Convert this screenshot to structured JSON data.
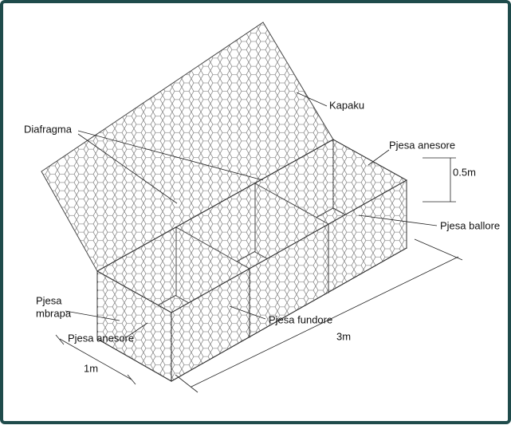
{
  "labels": {
    "lid": "Kapaku",
    "diaphragm": "Diafragma",
    "side_top": "Pjesa anesore",
    "height": "0.5m",
    "front": "Pjesa ballore",
    "back": [
      "Pjesa",
      "mbrapa"
    ],
    "side_bottom": "Pjesa anesore",
    "bottom": "Pjesa fundore",
    "length": "3m",
    "width": "1m"
  }
}
